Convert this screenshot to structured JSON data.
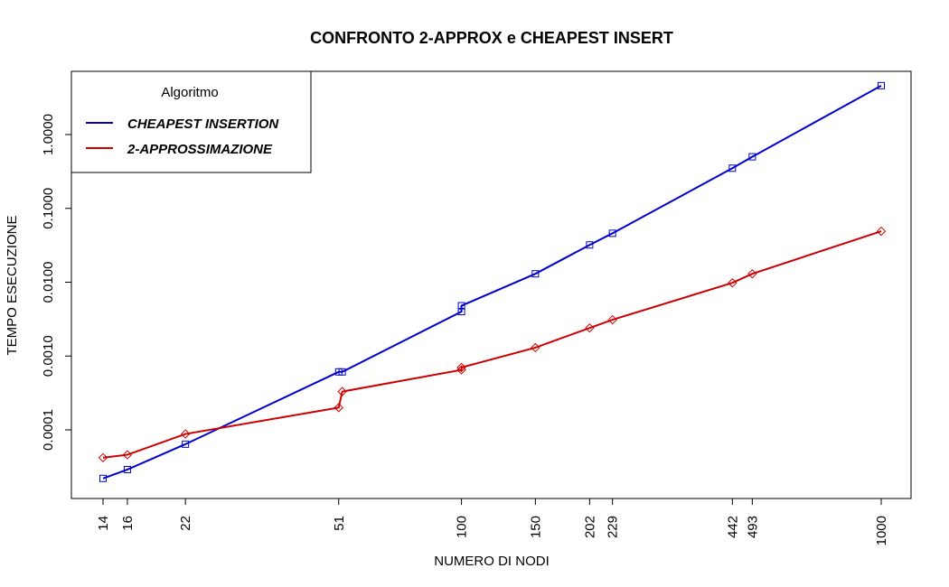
{
  "chart_data": {
    "type": "line",
    "title": "CONFRONTO 2-APPROX e CHEAPEST INSERT",
    "xlabel": "NUMERO DI NODI",
    "ylabel": "TEMPO ESECUZIONE",
    "x_scale": "log",
    "y_scale": "log",
    "xlim": [
      14,
      1000
    ],
    "ylim": [
      1.2e-05,
      7
    ],
    "x_ticks": [
      14,
      16,
      22,
      51,
      100,
      150,
      202,
      229,
      442,
      493,
      1000
    ],
    "y_ticks": [
      {
        "value": 0.0001,
        "label": "0.0001"
      },
      {
        "value": 0.001,
        "label": "0.0010"
      },
      {
        "value": 0.01,
        "label": "0.0100"
      },
      {
        "value": 0.1,
        "label": "0.1000"
      },
      {
        "value": 1,
        "label": "1.0000"
      }
    ],
    "grid": false,
    "legend": {
      "title": "Algoritmo",
      "position": "top-left"
    },
    "series": [
      {
        "name": "CHEAPEST INSERTION",
        "color": "#0000cc",
        "marker": "square",
        "points": [
          {
            "x": 14,
            "y": 2.2e-05
          },
          {
            "x": 16,
            "y": 2.9e-05
          },
          {
            "x": 22,
            "y": 6.4e-05
          },
          {
            "x": 51,
            "y": 0.00061
          },
          {
            "x": 52,
            "y": 0.00061
          },
          {
            "x": 100,
            "y": 0.004
          },
          {
            "x": 100,
            "y": 0.0048
          },
          {
            "x": 150,
            "y": 0.013
          },
          {
            "x": 202,
            "y": 0.032
          },
          {
            "x": 229,
            "y": 0.046
          },
          {
            "x": 442,
            "y": 0.35
          },
          {
            "x": 493,
            "y": 0.5
          },
          {
            "x": 1000,
            "y": 4.6
          }
        ]
      },
      {
        "name": "2-APPROSSIMAZIONE",
        "color": "#cc0000",
        "marker": "diamond",
        "points": [
          {
            "x": 14,
            "y": 4.2e-05
          },
          {
            "x": 16,
            "y": 4.6e-05
          },
          {
            "x": 22,
            "y": 8.8e-05
          },
          {
            "x": 51,
            "y": 0.0002
          },
          {
            "x": 52,
            "y": 0.00033
          },
          {
            "x": 100,
            "y": 0.00065
          },
          {
            "x": 100,
            "y": 0.0007
          },
          {
            "x": 150,
            "y": 0.0013
          },
          {
            "x": 202,
            "y": 0.0024
          },
          {
            "x": 229,
            "y": 0.0031
          },
          {
            "x": 442,
            "y": 0.0098
          },
          {
            "x": 493,
            "y": 0.013
          },
          {
            "x": 1000,
            "y": 0.049
          }
        ]
      }
    ]
  }
}
